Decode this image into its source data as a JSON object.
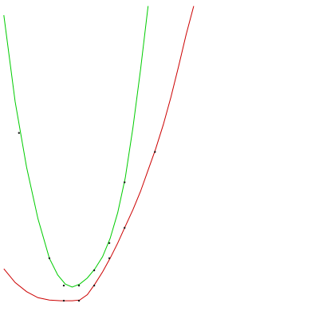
{
  "chart_data": {
    "type": "line",
    "title": "",
    "xlabel": "",
    "ylabel": "",
    "grid": false,
    "legend": "none",
    "xlim": [
      0,
      21
    ],
    "ylim": [
      0,
      21
    ],
    "series": [
      {
        "color": "#00cc00",
        "points": [
          [
            1.25,
            12.25
          ],
          [
            3.25,
            4.0
          ],
          [
            4.2,
            2.2
          ],
          [
            5.2,
            2.2
          ],
          [
            6.2,
            3.2
          ],
          [
            7.2,
            5.0
          ],
          [
            8.2,
            9.0
          ]
        ],
        "curve": [
          [
            0.25,
            20.0
          ],
          [
            1.0,
            14.3
          ],
          [
            1.75,
            10.0
          ],
          [
            2.5,
            6.6
          ],
          [
            3.25,
            4.0
          ],
          [
            3.8,
            2.9
          ],
          [
            4.3,
            2.3
          ],
          [
            4.75,
            2.1
          ],
          [
            5.25,
            2.3
          ],
          [
            5.75,
            2.7
          ],
          [
            6.25,
            3.3
          ],
          [
            6.75,
            4.1
          ],
          [
            7.25,
            5.3
          ],
          [
            7.75,
            7.0
          ],
          [
            8.25,
            9.3
          ],
          [
            8.75,
            12.6
          ],
          [
            9.25,
            16.4
          ],
          [
            9.75,
            20.6
          ]
        ]
      },
      {
        "color": "#cc0000",
        "points": [
          [
            4.2,
            1.2
          ],
          [
            5.2,
            1.2
          ],
          [
            6.2,
            2.2
          ],
          [
            7.2,
            4.0
          ],
          [
            8.2,
            6.0
          ],
          [
            10.2,
            11.0
          ]
        ],
        "curve": [
          [
            0.25,
            3.3
          ],
          [
            1.0,
            2.4
          ],
          [
            1.75,
            1.8
          ],
          [
            2.5,
            1.4
          ],
          [
            3.25,
            1.25
          ],
          [
            4.0,
            1.2
          ],
          [
            4.75,
            1.2
          ],
          [
            5.25,
            1.25
          ],
          [
            5.75,
            1.6
          ],
          [
            6.25,
            2.3
          ],
          [
            6.75,
            3.1
          ],
          [
            7.25,
            4.0
          ],
          [
            7.75,
            5.0
          ],
          [
            8.25,
            6.1
          ],
          [
            8.75,
            7.2
          ],
          [
            9.25,
            8.4
          ],
          [
            9.75,
            9.8
          ],
          [
            10.25,
            11.2
          ],
          [
            10.75,
            12.8
          ],
          [
            11.25,
            14.6
          ],
          [
            11.75,
            16.6
          ],
          [
            12.25,
            18.7
          ],
          [
            12.75,
            20.6
          ]
        ]
      }
    ]
  }
}
